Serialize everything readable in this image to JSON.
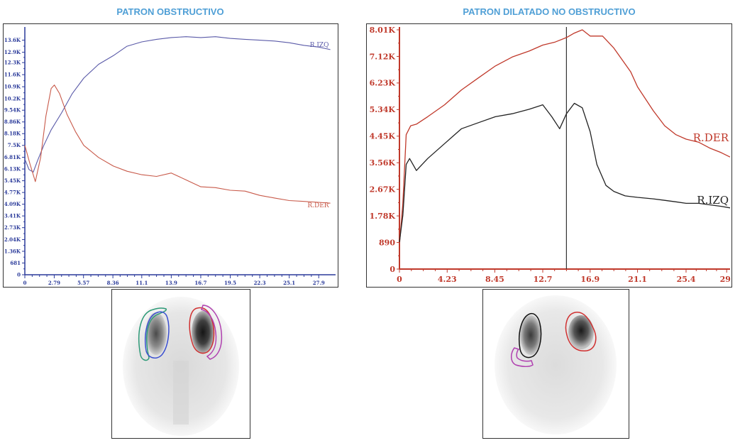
{
  "titles": {
    "left": "PATRON OBSTRUCTIVO",
    "right": "PATRON DILATADO NO OBSTRUCTIVO"
  },
  "chart_data": [
    {
      "type": "line",
      "title": "PATRON OBSTRUCTIVO",
      "grid": false,
      "axis_color": "#2a3a9a",
      "x_ticks": [
        "0",
        "2.79",
        "5.57",
        "8.36",
        "11.1",
        "13.9",
        "16.7",
        "19.5",
        "22.3",
        "25.1",
        "27.9"
      ],
      "y_ticks": [
        "0",
        "681",
        "1.36K",
        "2.04K",
        "2.73K",
        "3.41K",
        "4.09K",
        "4.77K",
        "5.45K",
        "6.13K",
        "6.81K",
        "7.5K",
        "8.18K",
        "8.86K",
        "9.54K",
        "10.2K",
        "10.9K",
        "11.6K",
        "12.3K",
        "12.9K",
        "13.6K"
      ],
      "xlim": [
        0,
        29.5
      ],
      "ylim": [
        0,
        14200
      ],
      "series": [
        {
          "name": "R.IZQ",
          "color": "#5a5aa8",
          "x": [
            0,
            0.4,
            0.8,
            1.2,
            1.8,
            2.5,
            3.5,
            4.5,
            5.6,
            7,
            8.4,
            9.7,
            11.1,
            12.5,
            13.9,
            15.3,
            16.7,
            18.1,
            19.5,
            20.9,
            22.3,
            23.7,
            25.1,
            26.5,
            27.9,
            29
          ],
          "y": [
            6700,
            6100,
            5950,
            6600,
            7500,
            8400,
            9400,
            10500,
            11400,
            12200,
            12700,
            13250,
            13500,
            13650,
            13750,
            13800,
            13750,
            13800,
            13700,
            13650,
            13600,
            13550,
            13450,
            13300,
            13200,
            13050
          ]
        },
        {
          "name": "R.DER",
          "color": "#c85a4a",
          "x": [
            0,
            0.5,
            1,
            1.5,
            2,
            2.5,
            2.8,
            3.3,
            4,
            4.8,
            5.6,
            7,
            8.4,
            9.7,
            11.1,
            12.5,
            13.9,
            15.3,
            16.7,
            18.1,
            19.5,
            20.9,
            22.3,
            23.7,
            25.1,
            26.5,
            27.9,
            29
          ],
          "y": [
            7500,
            6400,
            5400,
            6800,
            9200,
            10800,
            11000,
            10500,
            9300,
            8300,
            7500,
            6800,
            6300,
            6000,
            5800,
            5700,
            5900,
            5500,
            5100,
            5050,
            4900,
            4850,
            4600,
            4450,
            4300,
            4250,
            4200,
            4150
          ]
        }
      ]
    },
    {
      "type": "line",
      "title": "PATRON DILATADO NO OBSTRUCTIVO",
      "grid": false,
      "axis_color": "#c0392b",
      "x_ticks": [
        "0",
        "4.23",
        "8.45",
        "12.7",
        "16.9",
        "21.1",
        "25.4",
        "29."
      ],
      "y_ticks": [
        "0",
        "890",
        "1.78K",
        "2.67K",
        "3.56K",
        "4.45K",
        "5.34K",
        "6.23K",
        "7.12K",
        "8.01K"
      ],
      "xlim": [
        0,
        29.3
      ],
      "ylim": [
        0,
        8010
      ],
      "cursor_x": 14.8,
      "series": [
        {
          "name": "R.DER",
          "color": "#c0392b",
          "x": [
            0,
            0.3,
            0.6,
            1,
            1.5,
            2.5,
            4,
            5.5,
            7,
            8.5,
            10,
            11.5,
            12.7,
            13.8,
            14.8,
            15.5,
            16.2,
            16.9,
            18,
            19,
            20.5,
            21.1,
            22.5,
            23.5,
            24.5,
            25.4,
            26.5,
            27.5,
            28.5,
            29.3
          ],
          "y": [
            800,
            2200,
            4500,
            4800,
            4850,
            5100,
            5500,
            6000,
            6400,
            6800,
            7100,
            7300,
            7500,
            7600,
            7750,
            7900,
            8010,
            7800,
            7800,
            7400,
            6600,
            6100,
            5300,
            4800,
            4500,
            4350,
            4250,
            4050,
            3900,
            3750
          ]
        },
        {
          "name": "R.IZQ",
          "color": "#222222",
          "x": [
            0,
            0.3,
            0.6,
            0.9,
            1.5,
            2.5,
            4,
            5.5,
            7,
            8.5,
            10,
            11.5,
            12.7,
            13.5,
            14.2,
            14.8,
            15.5,
            16.2,
            16.9,
            17.5,
            18.3,
            19,
            20,
            21.1,
            22.5,
            23.5,
            24.5,
            25.4,
            26.5,
            27.5,
            28.5,
            29.3
          ],
          "y": [
            900,
            1800,
            3500,
            3700,
            3300,
            3700,
            4200,
            4700,
            4900,
            5100,
            5200,
            5350,
            5500,
            5100,
            4700,
            5200,
            5550,
            5400,
            4600,
            3500,
            2800,
            2600,
            2450,
            2400,
            2350,
            2300,
            2250,
            2200,
            2200,
            2150,
            2100,
            2050
          ]
        }
      ]
    }
  ],
  "scans": [
    {
      "regions": [
        {
          "color": "#2e9a78"
        },
        {
          "color": "#3a4fd0"
        },
        {
          "color": "#d03030"
        },
        {
          "color": "#b040b0"
        }
      ]
    },
    {
      "regions": [
        {
          "color": "#111111"
        },
        {
          "color": "#d03030"
        },
        {
          "color": "#b040b0"
        }
      ]
    }
  ]
}
